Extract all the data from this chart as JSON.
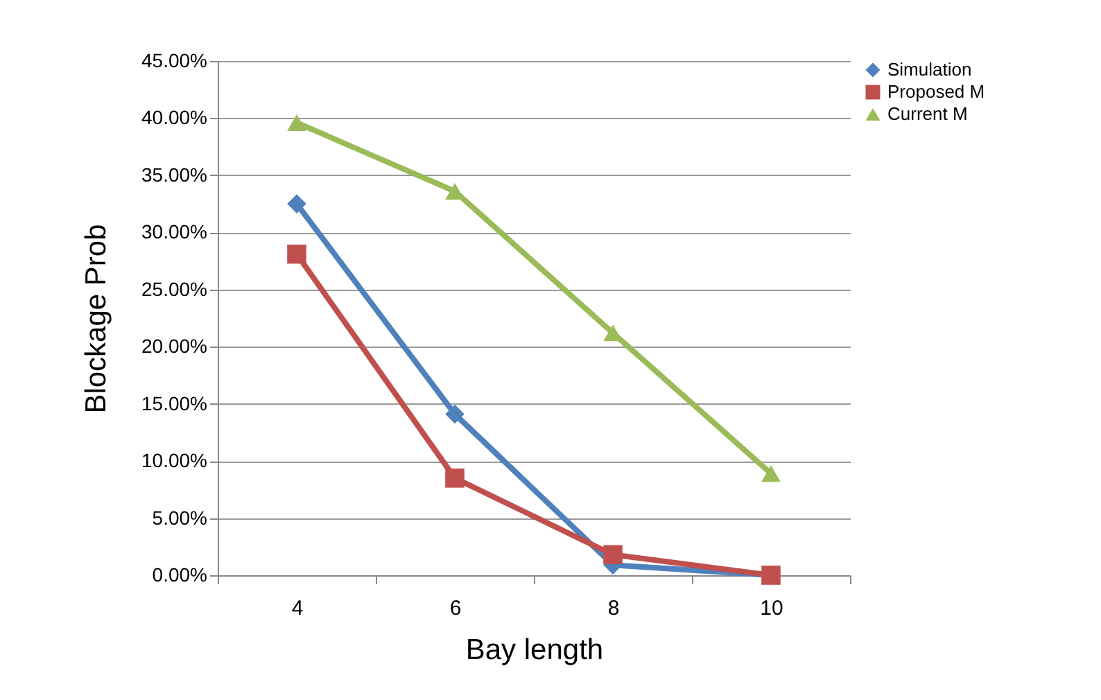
{
  "chart_data": {
    "type": "line",
    "xlabel": "Bay length",
    "ylabel": "Blockage Prob",
    "categories": [
      "4",
      "6",
      "8",
      "10"
    ],
    "series": [
      {
        "name": "Simulation",
        "color": "#4f81bd",
        "marker": "diamond",
        "values": [
          32.5,
          14.1,
          0.9,
          0
        ]
      },
      {
        "name": "Proposed M",
        "color": "#c0504d",
        "marker": "square",
        "values": [
          28.1,
          8.5,
          1.8,
          0
        ]
      },
      {
        "name": "Current M",
        "color": "#9bbb59",
        "marker": "triangle",
        "values": [
          39.6,
          33.6,
          21.2,
          8.9
        ]
      }
    ],
    "ylim": [
      0,
      45
    ],
    "yticks": [
      {
        "value": 0,
        "label": "0.00%"
      },
      {
        "value": 5,
        "label": "5.00%"
      },
      {
        "value": 10,
        "label": "10.00%"
      },
      {
        "value": 15,
        "label": "15.00%"
      },
      {
        "value": 20,
        "label": "20.00%"
      },
      {
        "value": 25,
        "label": "25.00%"
      },
      {
        "value": 30,
        "label": "30.00%"
      },
      {
        "value": 35,
        "label": "35.00%"
      },
      {
        "value": 40,
        "label": "40.00%"
      },
      {
        "value": 45,
        "label": "45.00%"
      }
    ],
    "grid": "y",
    "legend": "right",
    "line_style": "solid"
  }
}
